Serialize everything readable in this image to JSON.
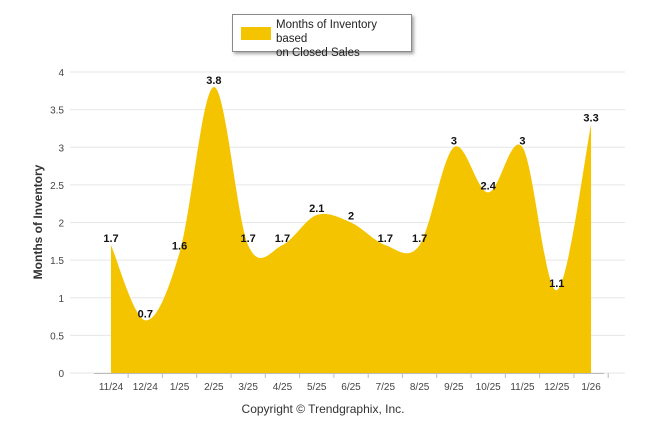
{
  "chart_data": {
    "type": "area",
    "smooth": true,
    "series": [
      {
        "name": "Months of Inventory based on Closed Sales",
        "color": "#f5c400",
        "values": [
          1.7,
          0.7,
          1.6,
          3.8,
          1.7,
          1.7,
          2.1,
          2,
          1.7,
          1.7,
          3,
          2.4,
          3,
          1.1,
          3.3
        ]
      }
    ],
    "categories": [
      "11/24",
      "12/24",
      "1/25",
      "2/25",
      "3/25",
      "4/25",
      "5/25",
      "6/25",
      "7/25",
      "8/25",
      "9/25",
      "10/25",
      "11/25",
      "12/25",
      "1/26"
    ],
    "data_labels": [
      "1.7",
      "0.7",
      "1.6",
      "3.8",
      "1.7",
      "1.7",
      "2.1",
      "2",
      "1.7",
      "1.7",
      "3",
      "2.4",
      "3",
      "1.1",
      "3.3"
    ],
    "yticks": [
      "0",
      "0.5",
      "1",
      "1.5",
      "2",
      "2.5",
      "3",
      "3.5",
      "4"
    ],
    "ylim": [
      0,
      4
    ],
    "ylabel": "Months of Inventory",
    "xlabel": "",
    "title": "",
    "grid": true,
    "legend_position": "top-center"
  },
  "legend": {
    "label_line1": "Months of Inventory based",
    "label_line2": "on Closed Sales"
  },
  "footer": {
    "copyright": "Copyright © Trendgraphix, Inc."
  }
}
